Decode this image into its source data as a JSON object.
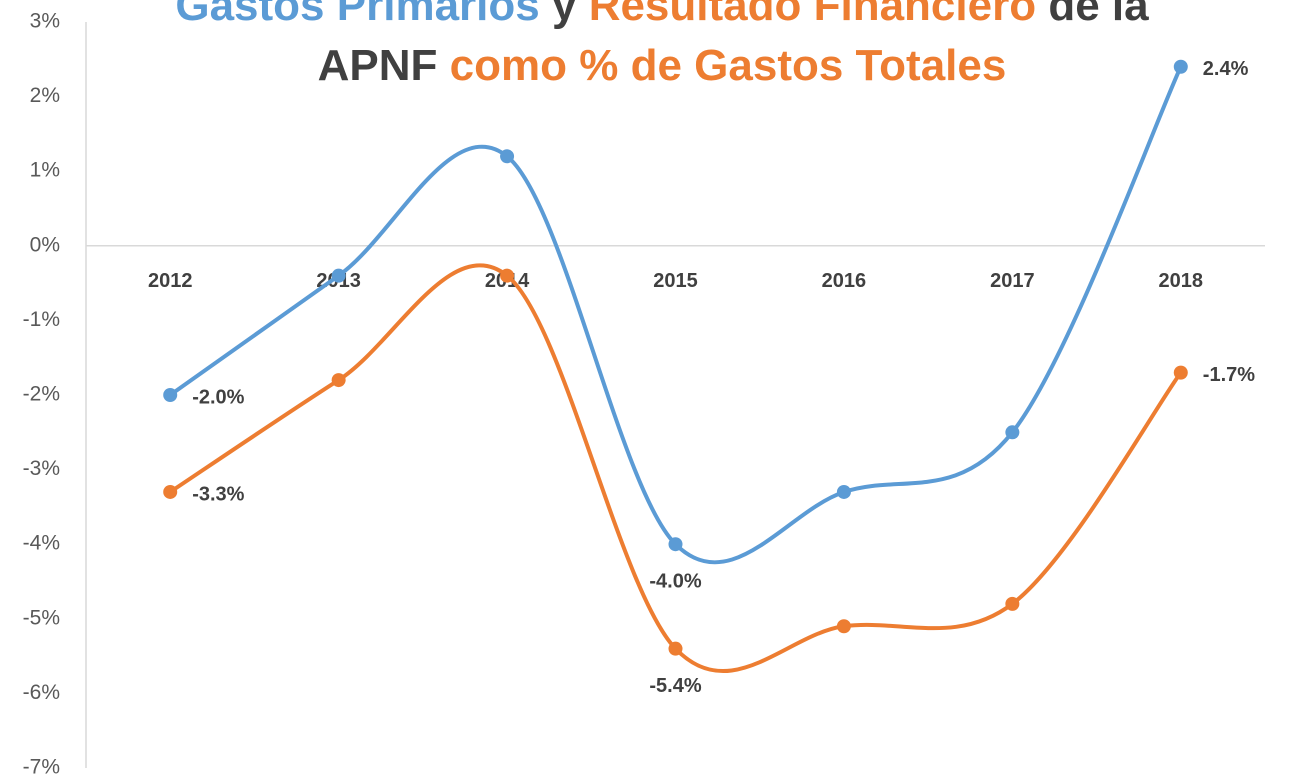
{
  "chart_data": {
    "type": "line",
    "title": [
      {
        "text": "Gastos Primarios",
        "color": "#5b9bd5"
      },
      {
        "text": "y",
        "color": "#404040"
      },
      {
        "text": "Resultado Financiero",
        "color": "#ed7d31"
      },
      {
        "text": "de la",
        "color": "#404040"
      },
      {
        "text": "APNF",
        "color": "#404040"
      },
      {
        "text": "como % de Gastos Totales",
        "color": "#ed7d31"
      }
    ],
    "categories": [
      "2012",
      "2013",
      "2014",
      "2015",
      "2016",
      "2017",
      "2018"
    ],
    "series": [
      {
        "color": "#5b9bd5",
        "values": [
          -2.0,
          -0.4,
          1.2,
          -4.0,
          -3.3,
          -2.5,
          2.4
        ],
        "value_labels": [
          "-2.0%",
          null,
          null,
          "-4.0%",
          null,
          null,
          "2.4%"
        ]
      },
      {
        "color": "#ed7d31",
        "values": [
          -3.3,
          -1.8,
          -0.4,
          -5.4,
          -5.1,
          -4.8,
          -1.7
        ],
        "value_labels": [
          "-3.3%",
          null,
          null,
          "-5.4%",
          null,
          null,
          "-1.7%"
        ]
      }
    ],
    "ylim": [
      -7,
      3
    ],
    "yticks": [
      {
        "value": 3,
        "label": "3%"
      },
      {
        "value": 2,
        "label": "2%"
      },
      {
        "value": 1,
        "label": "1%"
      },
      {
        "value": 0,
        "label": "0%"
      },
      {
        "value": -1,
        "label": "-1%"
      },
      {
        "value": -2,
        "label": "-2%"
      },
      {
        "value": -3,
        "label": "-3%"
      },
      {
        "value": -4,
        "label": "-4%"
      },
      {
        "value": -5,
        "label": "-5%"
      },
      {
        "value": -6,
        "label": "-6%"
      },
      {
        "value": -7,
        "label": "-7%"
      }
    ],
    "smooth": true
  }
}
